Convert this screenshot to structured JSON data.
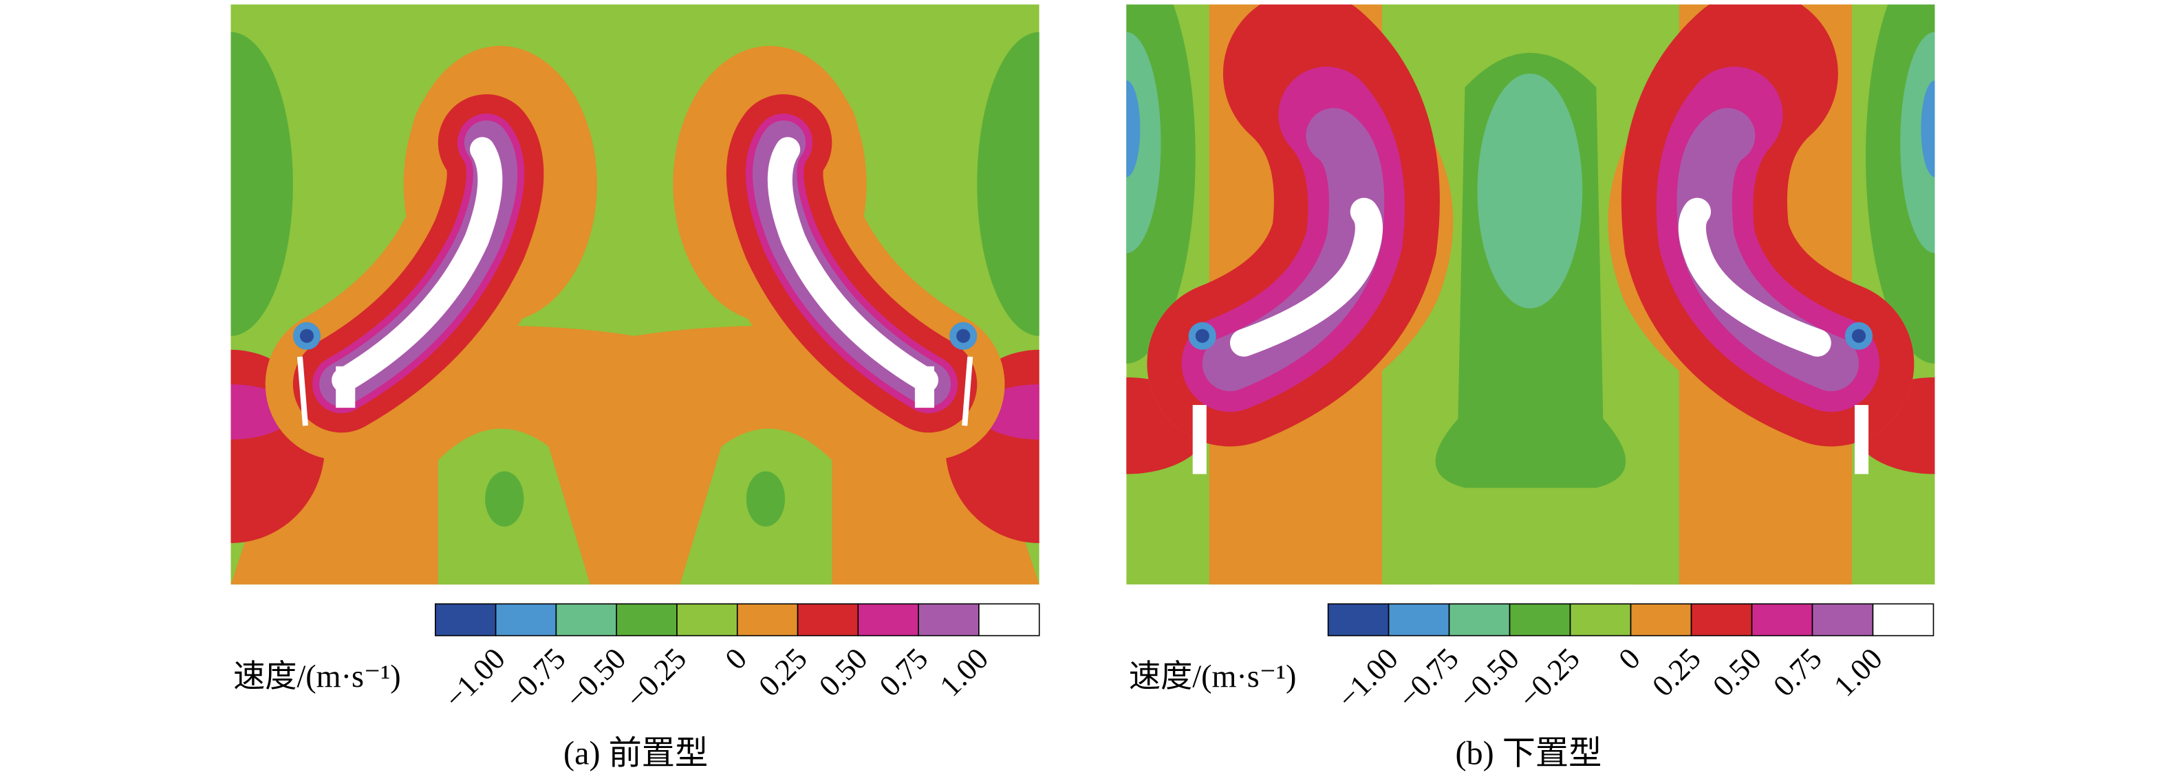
{
  "panels": [
    {
      "caption": "(a) 前置型",
      "colorbar": {
        "label": "速度/(m·s⁻¹)",
        "ticks": [
          "−1.00",
          "−0.75",
          "−0.50",
          "−0.25",
          "0",
          "0.25",
          "0.50",
          "0.75",
          "1.00"
        ],
        "colors": [
          "#2b4c9b",
          "#4b95d1",
          "#68bf8a",
          "#5bad3a",
          "#8ec43e",
          "#e38f2b",
          "#d4282c",
          "#cc2a8e",
          "#a85aaa",
          "#ffffff"
        ]
      }
    },
    {
      "caption": "(b) 下置型",
      "colorbar": {
        "label": "速度/(m·s⁻¹)",
        "ticks": [
          "−1.00",
          "−0.75",
          "−0.50",
          "−0.25",
          "0",
          "0.25",
          "0.50",
          "0.75",
          "1.00"
        ],
        "colors": [
          "#2b4c9b",
          "#4b95d1",
          "#68bf8a",
          "#5bad3a",
          "#8ec43e",
          "#e38f2b",
          "#d4282c",
          "#cc2a8e",
          "#a85aaa",
          "#ffffff"
        ]
      }
    }
  ]
}
